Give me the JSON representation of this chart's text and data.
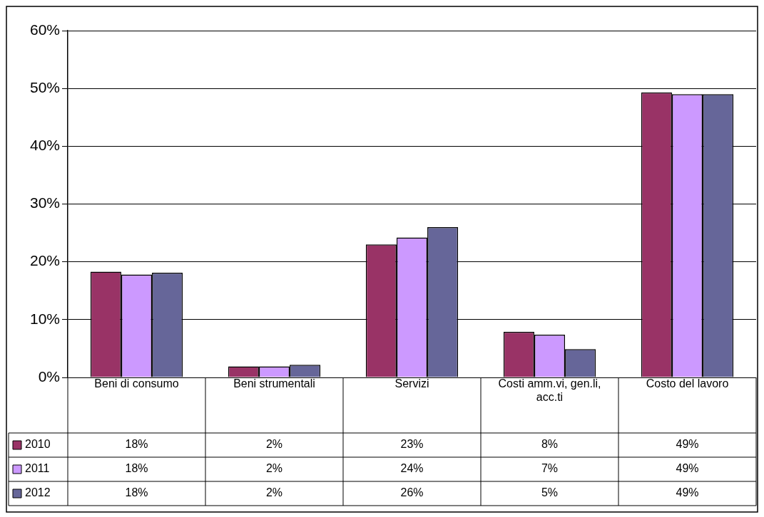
{
  "chart_data": {
    "type": "bar",
    "categories": [
      "Beni di consumo",
      "Beni strumentali",
      "Servizi",
      "Costi amm.vi, gen.li, acc.ti",
      "Costo del lavoro"
    ],
    "series": [
      {
        "name": "2010",
        "color": "#993366",
        "values": [
          18.3,
          1.9,
          23.0,
          7.9,
          49.3
        ],
        "value_labels": [
          "18%",
          "2%",
          "23%",
          "8%",
          "49%"
        ]
      },
      {
        "name": "2011",
        "color": "#cc99ff",
        "values": [
          17.8,
          1.9,
          24.2,
          7.4,
          49.0
        ],
        "value_labels": [
          "18%",
          "2%",
          "24%",
          "7%",
          "49%"
        ]
      },
      {
        "name": "2012",
        "color": "#666699",
        "values": [
          18.1,
          2.2,
          26.0,
          4.9,
          49.0
        ],
        "value_labels": [
          "18%",
          "2%",
          "26%",
          "5%",
          "49%"
        ]
      }
    ],
    "ylim": [
      0,
      60
    ],
    "yticks": [
      {
        "value": 0,
        "label": "0%"
      },
      {
        "value": 10,
        "label": "10%"
      },
      {
        "value": 20,
        "label": "20%"
      },
      {
        "value": 30,
        "label": "30%"
      },
      {
        "value": 40,
        "label": "40%"
      },
      {
        "value": 50,
        "label": "50%"
      },
      {
        "value": 60,
        "label": "60%"
      }
    ],
    "grid": "y",
    "legend": "bottom"
  }
}
